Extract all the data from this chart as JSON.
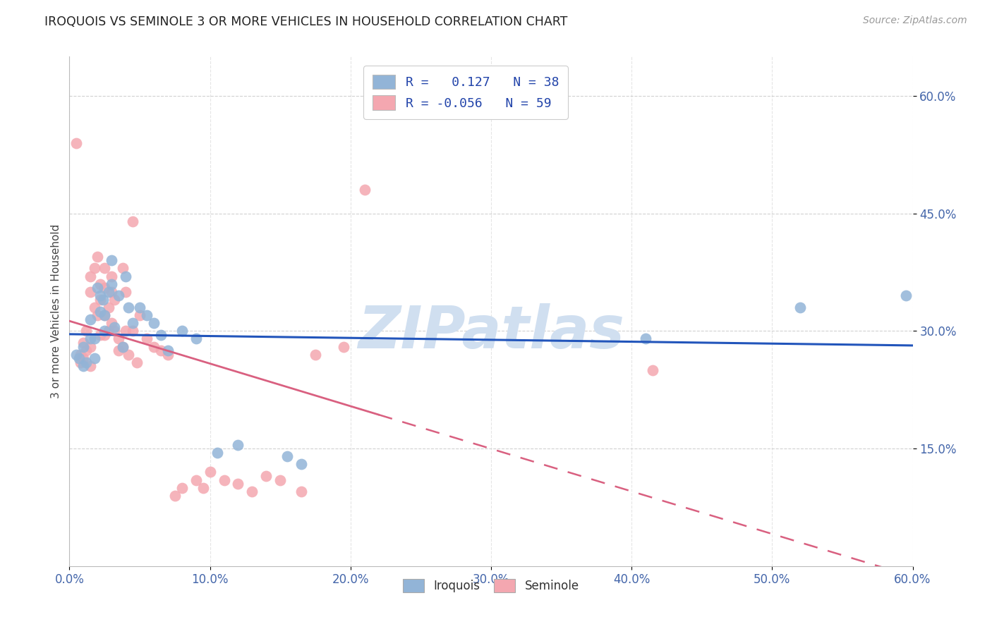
{
  "title": "IROQUOIS VS SEMINOLE 3 OR MORE VEHICLES IN HOUSEHOLD CORRELATION CHART",
  "source": "Source: ZipAtlas.com",
  "ylabel": "3 or more Vehicles in Household",
  "xlim": [
    0.0,
    0.6
  ],
  "ylim": [
    0.0,
    0.65
  ],
  "iroquois_r": 0.127,
  "iroquois_n": 38,
  "seminole_r": -0.056,
  "seminole_n": 59,
  "blue_color": "#92B4D7",
  "pink_color": "#F4A7B0",
  "line_blue": "#2255BB",
  "line_pink": "#D96080",
  "watermark": "ZIPatlas",
  "watermark_color": "#D0DFF0",
  "grid_color": "#CCCCCC",
  "iroquois_x": [
    0.005,
    0.007,
    0.01,
    0.01,
    0.012,
    0.015,
    0.015,
    0.018,
    0.018,
    0.02,
    0.022,
    0.022,
    0.024,
    0.025,
    0.025,
    0.028,
    0.03,
    0.03,
    0.032,
    0.035,
    0.038,
    0.04,
    0.042,
    0.045,
    0.05,
    0.055,
    0.06,
    0.065,
    0.07,
    0.08,
    0.09,
    0.105,
    0.12,
    0.155,
    0.165,
    0.41,
    0.52,
    0.595
  ],
  "iroquois_y": [
    0.27,
    0.265,
    0.28,
    0.255,
    0.26,
    0.315,
    0.29,
    0.29,
    0.265,
    0.355,
    0.345,
    0.325,
    0.34,
    0.32,
    0.3,
    0.35,
    0.39,
    0.36,
    0.305,
    0.345,
    0.28,
    0.37,
    0.33,
    0.31,
    0.33,
    0.32,
    0.31,
    0.295,
    0.275,
    0.3,
    0.29,
    0.145,
    0.155,
    0.14,
    0.13,
    0.29,
    0.33,
    0.345
  ],
  "seminole_x": [
    0.005,
    0.008,
    0.008,
    0.01,
    0.01,
    0.012,
    0.012,
    0.015,
    0.015,
    0.015,
    0.015,
    0.018,
    0.018,
    0.02,
    0.02,
    0.022,
    0.022,
    0.022,
    0.025,
    0.025,
    0.025,
    0.025,
    0.028,
    0.028,
    0.03,
    0.03,
    0.03,
    0.032,
    0.032,
    0.035,
    0.035,
    0.038,
    0.038,
    0.04,
    0.04,
    0.042,
    0.045,
    0.045,
    0.048,
    0.05,
    0.055,
    0.06,
    0.065,
    0.07,
    0.075,
    0.08,
    0.09,
    0.095,
    0.1,
    0.11,
    0.12,
    0.13,
    0.14,
    0.15,
    0.165,
    0.175,
    0.195,
    0.21,
    0.415
  ],
  "seminole_y": [
    0.54,
    0.27,
    0.26,
    0.285,
    0.265,
    0.3,
    0.275,
    0.37,
    0.35,
    0.28,
    0.255,
    0.38,
    0.33,
    0.395,
    0.32,
    0.36,
    0.34,
    0.295,
    0.38,
    0.355,
    0.32,
    0.295,
    0.33,
    0.3,
    0.37,
    0.35,
    0.31,
    0.34,
    0.3,
    0.29,
    0.275,
    0.38,
    0.28,
    0.35,
    0.3,
    0.27,
    0.44,
    0.3,
    0.26,
    0.32,
    0.29,
    0.28,
    0.275,
    0.27,
    0.09,
    0.1,
    0.11,
    0.1,
    0.12,
    0.11,
    0.105,
    0.095,
    0.115,
    0.11,
    0.095,
    0.27,
    0.28,
    0.48,
    0.25
  ]
}
